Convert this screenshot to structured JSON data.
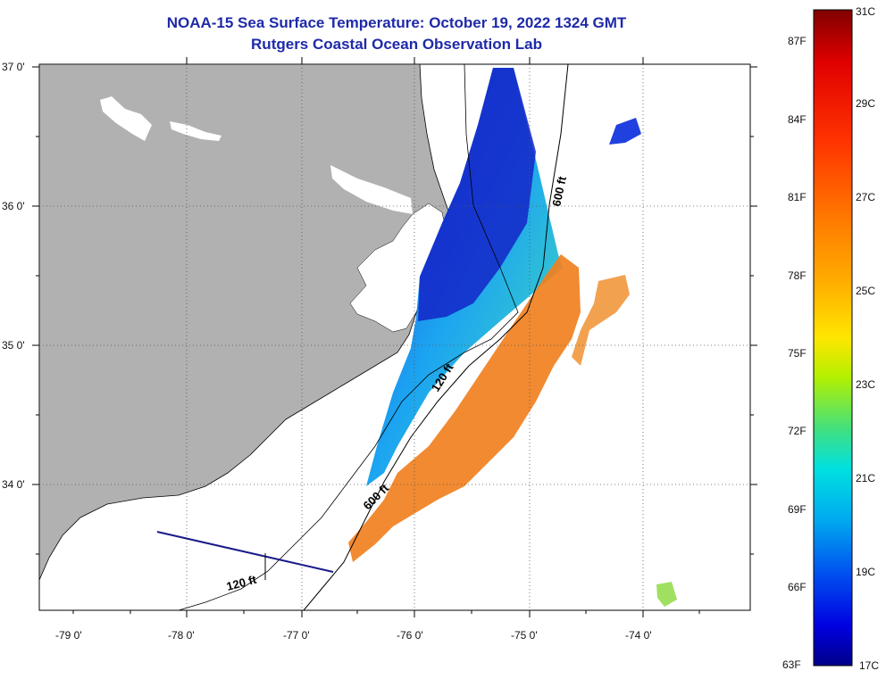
{
  "title": {
    "line1": "NOAA-15 Sea Surface Temperature:  October 19, 2022 1324 GMT",
    "line2": "Rutgers Coastal Ocean Observation Lab"
  },
  "map": {
    "lon_labels": [
      "-79 0'",
      "-78 0'",
      "-77 0'",
      "-76 0'",
      "-75 0'",
      "-74 0'"
    ],
    "lat_labels": [
      "37 0'",
      "36 0'",
      "35 0'",
      "34 0'"
    ],
    "contour_labels": [
      "600 ft",
      "120 ft",
      "600 ft",
      "120 ft"
    ],
    "colors": {
      "land": "#b1b1b1",
      "water_background": "#ffffff",
      "grid": "#555555",
      "coastline": "#000000",
      "transect": "#1a1a8a"
    }
  },
  "colorbar": {
    "fahrenheit_labels": [
      "87F",
      "84F",
      "81F",
      "78F",
      "75F",
      "72F",
      "69F",
      "66F",
      "63F"
    ],
    "celsius_labels": [
      "31C",
      "29C",
      "27C",
      "25C",
      "23C",
      "21C",
      "19C",
      "17C"
    ],
    "gradient_stops": [
      "#800000",
      "#e00000",
      "#ff3300",
      "#ff7a00",
      "#ffb000",
      "#ffe600",
      "#b4f000",
      "#40e080",
      "#00e0e0",
      "#00a8f0",
      "#0050f0",
      "#0000e0",
      "#00008a"
    ]
  }
}
